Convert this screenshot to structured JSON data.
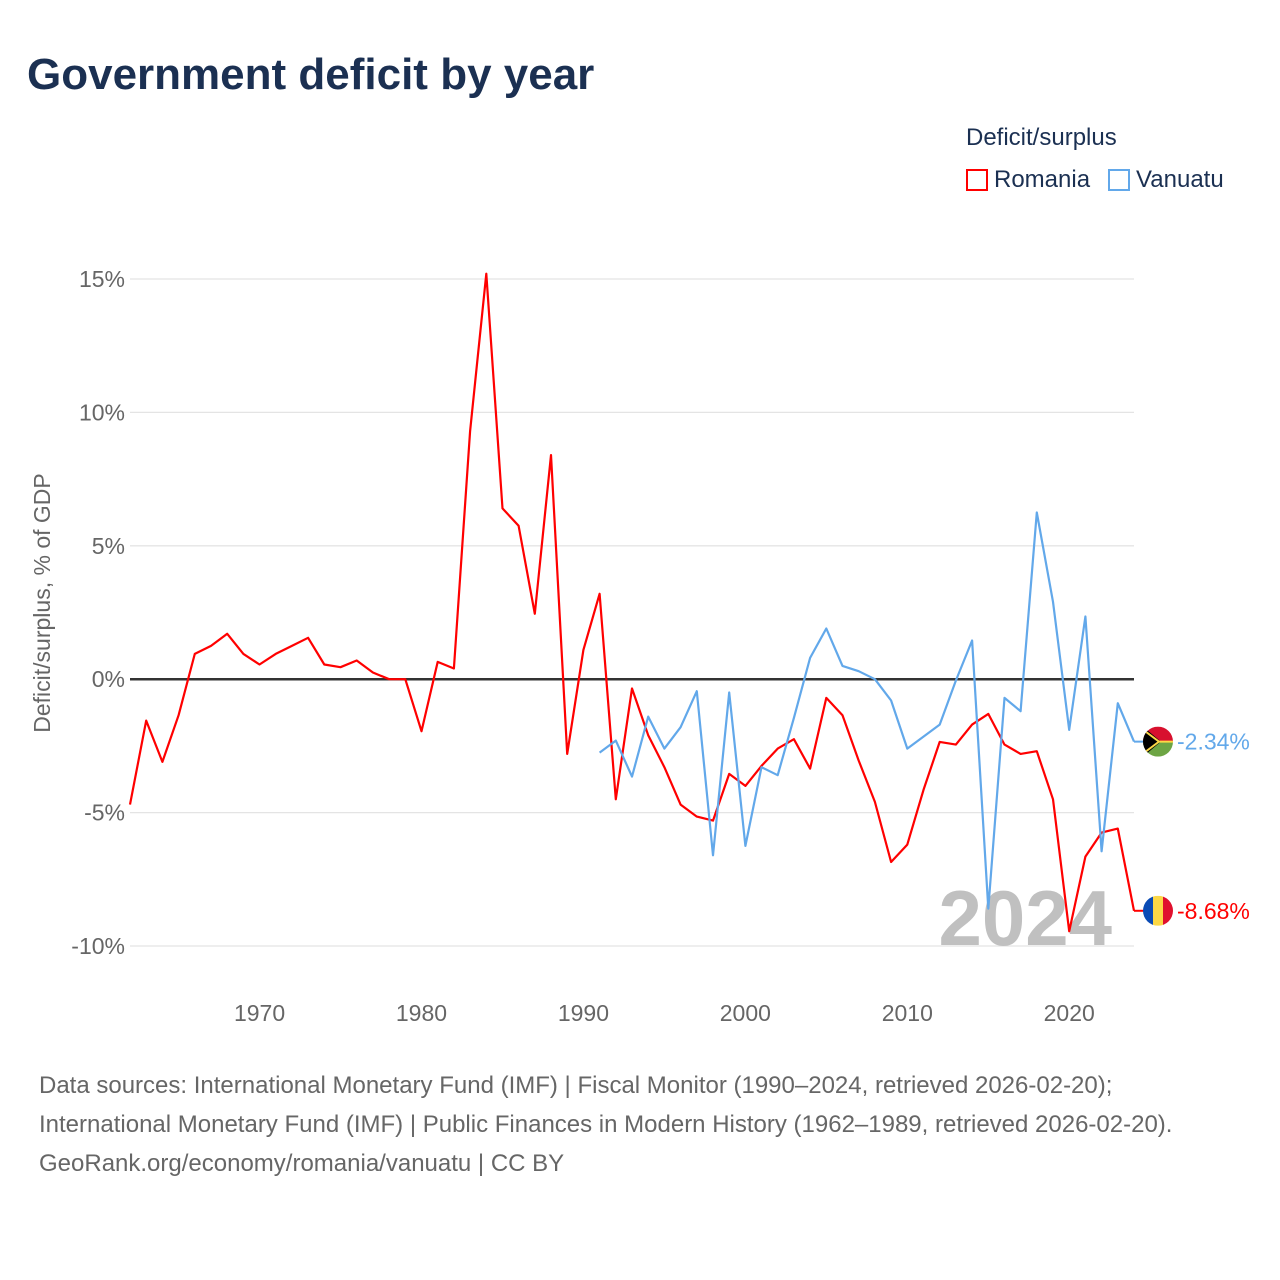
{
  "title": "Government deficit by year",
  "legend": {
    "title": "Deficit/surplus",
    "items": [
      {
        "name": "Romania",
        "color": "#ff0000"
      },
      {
        "name": "Vanuatu",
        "color": "#62a8ea"
      }
    ]
  },
  "chart_data": {
    "type": "line",
    "title": "Government deficit by year",
    "xlabel": "",
    "ylabel": "Deficit/surplus, % of GDP",
    "xlim": [
      1962,
      2024
    ],
    "ylim": [
      -10,
      15
    ],
    "yticks": [
      {
        "v": 15,
        "label": "15%"
      },
      {
        "v": 10,
        "label": "10%"
      },
      {
        "v": 5,
        "label": "5%"
      },
      {
        "v": 0,
        "label": "0%"
      },
      {
        "v": -5,
        "label": "-5%"
      },
      {
        "v": -10,
        "label": "-10%"
      }
    ],
    "xticks": [
      {
        "v": 1970,
        "label": "1970"
      },
      {
        "v": 1980,
        "label": "1980"
      },
      {
        "v": 1990,
        "label": "1990"
      },
      {
        "v": 2000,
        "label": "2000"
      },
      {
        "v": 2010,
        "label": "2010"
      },
      {
        "v": 2020,
        "label": "2020"
      }
    ],
    "grid": true,
    "legend_position": "top-right",
    "year_watermark": "2024",
    "series": [
      {
        "name": "Romania",
        "color": "#ff0000",
        "end_label": "-8.68%",
        "flag": "romania",
        "x": [
          1962,
          1963,
          1964,
          1965,
          1966,
          1967,
          1968,
          1969,
          1970,
          1971,
          1972,
          1973,
          1974,
          1975,
          1976,
          1977,
          1978,
          1979,
          1980,
          1981,
          1982,
          1983,
          1984,
          1985,
          1986,
          1987,
          1988,
          1989,
          1990,
          1991,
          1992,
          1993,
          1994,
          1995,
          1996,
          1997,
          1998,
          1999,
          2000,
          2001,
          2002,
          2003,
          2004,
          2005,
          2006,
          2007,
          2008,
          2009,
          2010,
          2011,
          2012,
          2013,
          2014,
          2015,
          2016,
          2017,
          2018,
          2019,
          2020,
          2021,
          2022,
          2023,
          2024
        ],
        "values": [
          -4.7,
          -1.55,
          -3.1,
          -1.35,
          0.95,
          1.25,
          1.7,
          0.95,
          0.55,
          0.95,
          1.25,
          1.55,
          0.55,
          0.45,
          0.7,
          0.25,
          0,
          0,
          -1.95,
          0.65,
          0.4,
          9.3,
          15.2,
          6.4,
          5.75,
          2.45,
          8.4,
          -2.8,
          1.1,
          3.2,
          -4.5,
          -0.35,
          -2.1,
          -3.3,
          -4.7,
          -5.15,
          -5.3,
          -3.55,
          -4.0,
          -3.25,
          -2.6,
          -2.25,
          -3.35,
          -0.7,
          -1.35,
          -3.05,
          -4.6,
          -6.85,
          -6.2,
          -4.15,
          -2.35,
          -2.45,
          -1.7,
          -1.3,
          -2.45,
          -2.8,
          -2.7,
          -4.5,
          -9.45,
          -6.65,
          -5.75,
          -5.6,
          -8.68
        ]
      },
      {
        "name": "Vanuatu",
        "color": "#62a8ea",
        "end_label": "-2.34%",
        "flag": "vanuatu",
        "x": [
          1991,
          1992,
          1993,
          1994,
          1995,
          1996,
          1997,
          1998,
          1999,
          2000,
          2001,
          2002,
          2003,
          2004,
          2005,
          2006,
          2007,
          2008,
          2009,
          2010,
          2011,
          2012,
          2013,
          2014,
          2015,
          2016,
          2017,
          2018,
          2019,
          2020,
          2021,
          2022,
          2023,
          2024
        ],
        "values": [
          -2.75,
          -2.3,
          -3.65,
          -1.4,
          -2.6,
          -1.8,
          -0.45,
          -6.6,
          -0.5,
          -6.25,
          -3.3,
          -3.6,
          -1.45,
          0.8,
          1.9,
          0.5,
          0.3,
          0,
          -0.8,
          -2.6,
          -2.15,
          -1.7,
          -0.05,
          1.45,
          -8.6,
          -0.7,
          -1.2,
          6.25,
          2.9,
          -1.9,
          2.35,
          -6.45,
          -0.9,
          -2.34
        ]
      }
    ]
  },
  "footer": {
    "sources": "Data sources: International Monetary Fund (IMF) | Fiscal Monitor (1990–2024, retrieved 2026-02-20); International Monetary Fund (IMF) | Public Finances in Modern History (1962–1989, retrieved 2026-02-20).",
    "credit": "GeoRank.org/economy/romania/vanuatu | CC BY"
  }
}
